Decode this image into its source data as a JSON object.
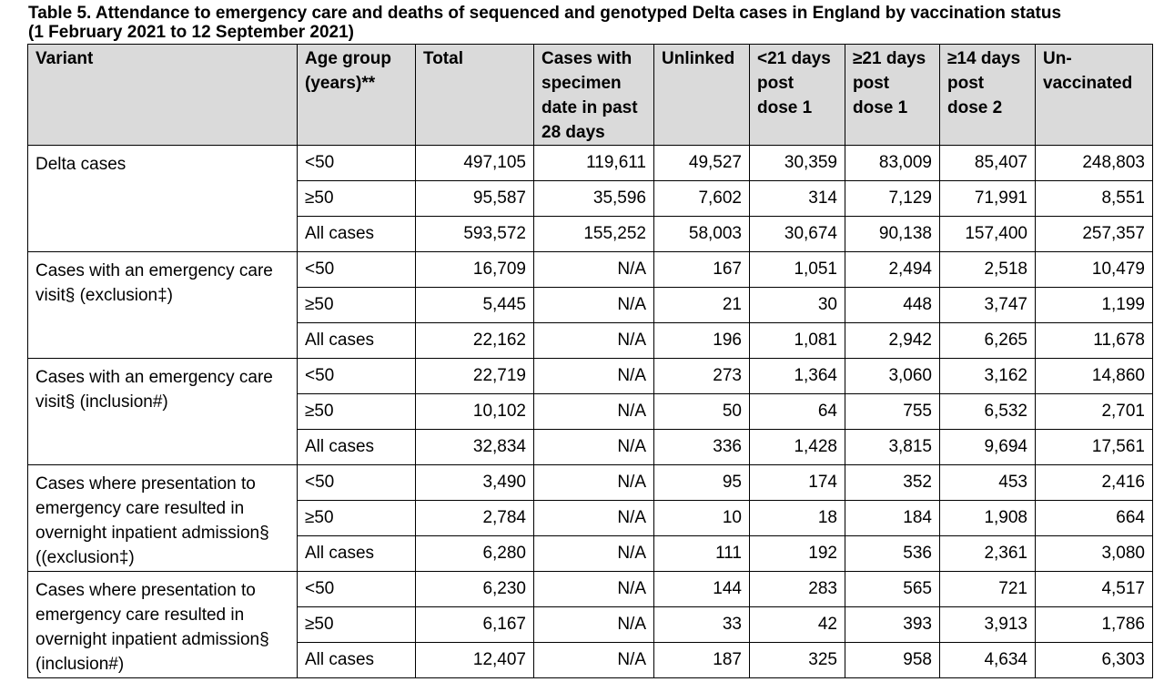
{
  "title_line1": "Table 5. Attendance to emergency care and deaths of sequenced and genotyped Delta cases in England by vaccination status",
  "title_line2": "(1 February 2021 to 12 September 2021)",
  "headers": {
    "variant": "Variant",
    "age_group_l1": "Age group",
    "age_group_l2": "(years)**",
    "total": "Total",
    "specimen_l1": "Cases with",
    "specimen_l2": "specimen",
    "specimen_l3": "date in past",
    "specimen_l4": "28 days",
    "unlinked": "Unlinked",
    "lt21_l1": "<21 days",
    "lt21_l2": "post",
    "lt21_l3": "dose 1",
    "ge21_l1": "≥21 days",
    "ge21_l2": "post",
    "ge21_l3": "dose 1",
    "ge14_l1": "≥14 days",
    "ge14_l2": "post",
    "ge14_l3": "dose 2",
    "unvacc_l1": "Un-",
    "unvacc_l2": "vaccinated"
  },
  "groups": [
    {
      "variant_lines": [
        "Delta cases"
      ],
      "rows": [
        {
          "age": "<50",
          "total": "497,105",
          "specimen": "119,611",
          "unlinked": "49,527",
          "lt21": "30,359",
          "ge21": "83,009",
          "ge14": "85,407",
          "unvacc": "248,803"
        },
        {
          "age": "≥50",
          "total": "95,587",
          "specimen": "35,596",
          "unlinked": "7,602",
          "lt21": "314",
          "ge21": "7,129",
          "ge14": "71,991",
          "unvacc": "8,551"
        },
        {
          "age": "All cases",
          "total": "593,572",
          "specimen": "155,252",
          "unlinked": "58,003",
          "lt21": "30,674",
          "ge21": "90,138",
          "ge14": "157,400",
          "unvacc": "257,357"
        }
      ]
    },
    {
      "variant_lines": [
        "Cases with an emergency care",
        "visit§ (exclusion‡)"
      ],
      "rows": [
        {
          "age": "<50",
          "total": "16,709",
          "specimen": "N/A",
          "unlinked": "167",
          "lt21": "1,051",
          "ge21": "2,494",
          "ge14": "2,518",
          "unvacc": "10,479"
        },
        {
          "age": "≥50",
          "total": "5,445",
          "specimen": "N/A",
          "unlinked": "21",
          "lt21": "30",
          "ge21": "448",
          "ge14": "3,747",
          "unvacc": "1,199"
        },
        {
          "age": "All cases",
          "total": "22,162",
          "specimen": "N/A",
          "unlinked": "196",
          "lt21": "1,081",
          "ge21": "2,942",
          "ge14": "6,265",
          "unvacc": "11,678"
        }
      ]
    },
    {
      "variant_lines": [
        "Cases with an emergency care",
        "visit§ (inclusion#)"
      ],
      "rows": [
        {
          "age": "<50",
          "total": "22,719",
          "specimen": "N/A",
          "unlinked": "273",
          "lt21": "1,364",
          "ge21": "3,060",
          "ge14": "3,162",
          "unvacc": "14,860"
        },
        {
          "age": "≥50",
          "total": "10,102",
          "specimen": "N/A",
          "unlinked": "50",
          "lt21": "64",
          "ge21": "755",
          "ge14": "6,532",
          "unvacc": "2,701"
        },
        {
          "age": "All cases",
          "total": "32,834",
          "specimen": "N/A",
          "unlinked": "336",
          "lt21": "1,428",
          "ge21": "3,815",
          "ge14": "9,694",
          "unvacc": "17,561"
        }
      ]
    },
    {
      "variant_lines": [
        "Cases where presentation to",
        "emergency care resulted in",
        "overnight inpatient admission§",
        "((exclusion‡)"
      ],
      "rows": [
        {
          "age": "<50",
          "total": "3,490",
          "specimen": "N/A",
          "unlinked": "95",
          "lt21": "174",
          "ge21": "352",
          "ge14": "453",
          "unvacc": "2,416"
        },
        {
          "age": "≥50",
          "total": "2,784",
          "specimen": "N/A",
          "unlinked": "10",
          "lt21": "18",
          "ge21": "184",
          "ge14": "1,908",
          "unvacc": "664"
        },
        {
          "age": "All cases",
          "total": "6,280",
          "specimen": "N/A",
          "unlinked": "111",
          "lt21": "192",
          "ge21": "536",
          "ge14": "2,361",
          "unvacc": "3,080"
        }
      ]
    },
    {
      "variant_lines": [
        "Cases where presentation to",
        "emergency care resulted in",
        "overnight inpatient admission§",
        "(inclusion#)"
      ],
      "rows": [
        {
          "age": "<50",
          "total": "6,230",
          "specimen": "N/A",
          "unlinked": "144",
          "lt21": "283",
          "ge21": "565",
          "ge14": "721",
          "unvacc": "4,517"
        },
        {
          "age": "≥50",
          "total": "6,167",
          "specimen": "N/A",
          "unlinked": "33",
          "lt21": "42",
          "ge21": "393",
          "ge14": "3,913",
          "unvacc": "1,786"
        },
        {
          "age": "All cases",
          "total": "12,407",
          "specimen": "N/A",
          "unlinked": "187",
          "lt21": "325",
          "ge21": "958",
          "ge14": "4,634",
          "unvacc": "6,303"
        }
      ]
    }
  ]
}
